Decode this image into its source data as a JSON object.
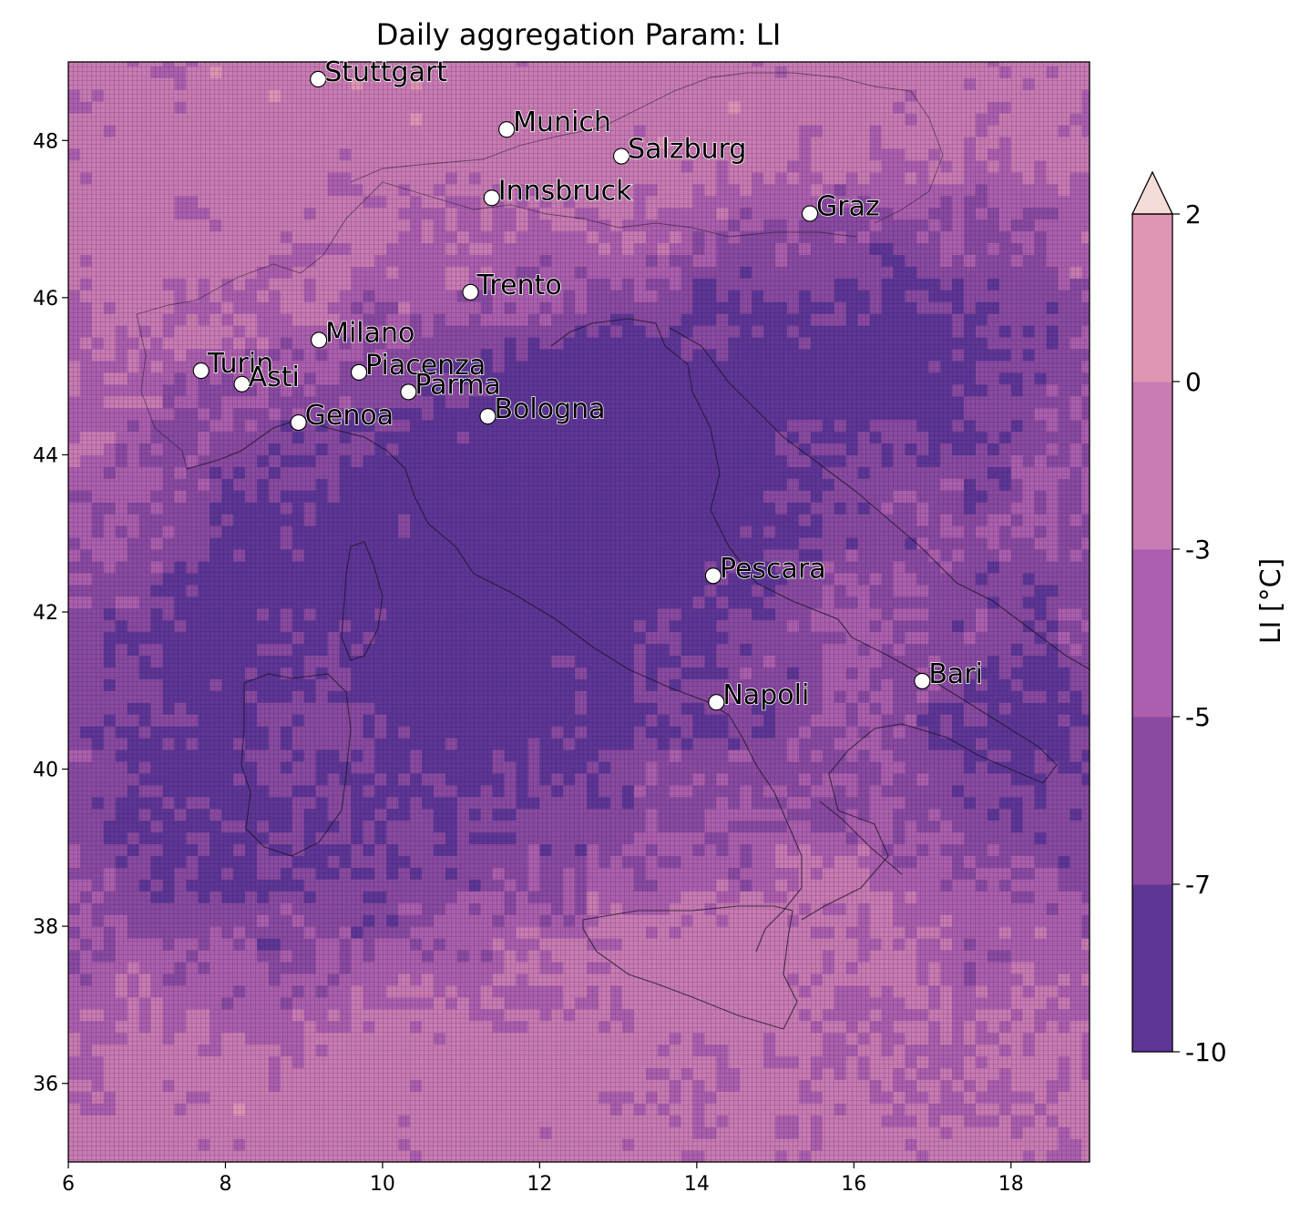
{
  "title": "Daily aggregation Param: LI",
  "colorbar": {
    "label": "LI  [°C]",
    "extend": "max",
    "levels": [
      -10,
      -7,
      -5,
      -3,
      0,
      2
    ],
    "tick_labels": [
      "-10",
      "-7",
      "-5",
      "-3",
      "0",
      "2"
    ],
    "colors": [
      "#5e3696",
      "#8a4aa1",
      "#ac5fae",
      "#c97bb3",
      "#e095b5"
    ],
    "over_color": "#f6dcd8"
  },
  "chart_data": {
    "type": "heatmap",
    "title": "Daily aggregation Param: LI",
    "xlabel": "",
    "ylabel": "",
    "xlim": [
      6,
      19
    ],
    "ylim": [
      35,
      49
    ],
    "xticks": [
      6,
      8,
      10,
      12,
      14,
      16,
      18
    ],
    "yticks": [
      36,
      38,
      40,
      42,
      44,
      46,
      48
    ],
    "xtick_labels": [
      "6",
      "8",
      "10",
      "12",
      "14",
      "16",
      "18"
    ],
    "ytick_labels": [
      "36",
      "38",
      "40",
      "42",
      "44",
      "46",
      "48"
    ],
    "grid": true,
    "cities": [
      {
        "name": "Stuttgart",
        "lon": 9.18,
        "lat": 48.78
      },
      {
        "name": "Munich",
        "lon": 11.58,
        "lat": 48.14
      },
      {
        "name": "Salzburg",
        "lon": 13.04,
        "lat": 47.8
      },
      {
        "name": "Innsbruck",
        "lon": 11.39,
        "lat": 47.27
      },
      {
        "name": "Graz",
        "lon": 15.44,
        "lat": 47.07
      },
      {
        "name": "Trento",
        "lon": 11.12,
        "lat": 46.07
      },
      {
        "name": "Milano",
        "lon": 9.19,
        "lat": 45.46
      },
      {
        "name": "Turin",
        "lon": 7.69,
        "lat": 45.07
      },
      {
        "name": "Piacenza",
        "lon": 9.7,
        "lat": 45.05
      },
      {
        "name": "Asti",
        "lon": 8.21,
        "lat": 44.9
      },
      {
        "name": "Parma",
        "lon": 10.33,
        "lat": 44.8
      },
      {
        "name": "Bologna",
        "lon": 11.34,
        "lat": 44.49
      },
      {
        "name": "Genoa",
        "lon": 8.93,
        "lat": 44.41
      },
      {
        "name": "Pescara",
        "lon": 14.21,
        "lat": 42.46
      },
      {
        "name": "Bari",
        "lon": 16.87,
        "lat": 41.12
      },
      {
        "name": "Napoli",
        "lon": 14.25,
        "lat": 40.85
      }
    ]
  }
}
